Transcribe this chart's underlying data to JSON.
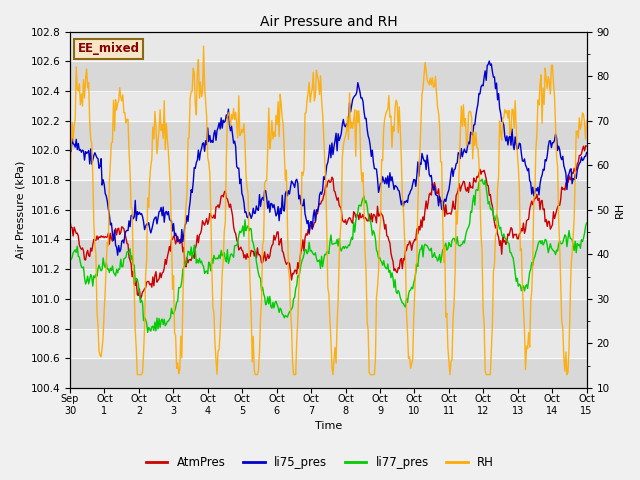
{
  "title": "Air Pressure and RH",
  "xlabel": "Time",
  "ylabel_left": "Air Pressure (kPa)",
  "ylabel_right": "RH",
  "ylim_left": [
    100.4,
    102.8
  ],
  "ylim_right": [
    10,
    90
  ],
  "annotation_text": "EE_mixed",
  "annotation_facecolor": "#F5E6C8",
  "annotation_edgecolor": "#8B6914",
  "annotation_textcolor": "#8B0000",
  "bg_color": "#f0f0f0",
  "plot_bg_color": "#e8e8e8",
  "band_color_light": "#e8e8e8",
  "band_color_dark": "#d8d8d8",
  "colors": {
    "AtmPres": "#cc0000",
    "li75_pres": "#0000cc",
    "li77_pres": "#00cc00",
    "RH": "#ffaa00"
  },
  "xtick_labels": [
    "Sep 30",
    "Oct 1",
    "Oct 2",
    "Oct 3",
    "Oct 4",
    "Oct 5",
    "Oct 6",
    "Oct 7",
    "Oct 8",
    "Oct 9",
    "Oct 10",
    "Oct 11",
    "Oct 12",
    "Oct 13",
    "Oct 14",
    "Oct 15"
  ],
  "yticks_left": [
    100.4,
    100.6,
    100.8,
    101.0,
    101.2,
    101.4,
    101.6,
    101.8,
    102.0,
    102.2,
    102.4,
    102.6,
    102.8
  ],
  "yticks_right": [
    10,
    20,
    30,
    40,
    50,
    60,
    70,
    80,
    90
  ],
  "linewidth": 1.0
}
